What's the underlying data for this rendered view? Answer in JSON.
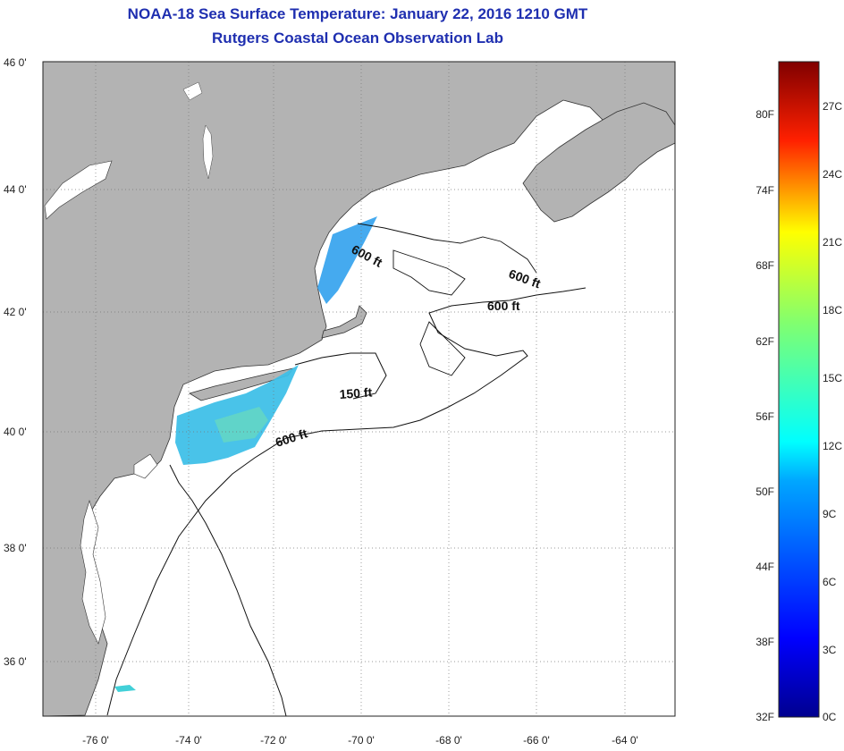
{
  "header": {
    "title": "NOAA-18 Sea Surface Temperature:  January 22, 2016 1210 GMT",
    "subtitle": "Rutgers Coastal Ocean Observation Lab"
  },
  "map": {
    "lat_labels": [
      "46 0'",
      "44 0'",
      "42 0'",
      "40 0'",
      "38 0'",
      "36 0'"
    ],
    "lon_labels": [
      "-76 0'",
      "-74 0'",
      "-72 0'",
      "-70 0'",
      "-68 0'",
      "-66 0'",
      "-64 0'"
    ],
    "contour_labels": [
      "600 ft",
      "600 ft",
      "600 ft",
      "150 ft",
      "600 ft"
    ],
    "colors": {
      "land": "#b3b3b3",
      "ocean": "#ffffff",
      "contour": "#111111",
      "grid": "#777777",
      "title": "#1f2fb0"
    }
  },
  "colorbar": {
    "f_labels": [
      "80F",
      "74F",
      "68F",
      "62F",
      "56F",
      "50F",
      "44F",
      "38F",
      "32F"
    ],
    "c_labels": [
      "27C",
      "24C",
      "21C",
      "18C",
      "15C",
      "12C",
      "9C",
      "6C",
      "3C",
      "0C"
    ]
  }
}
